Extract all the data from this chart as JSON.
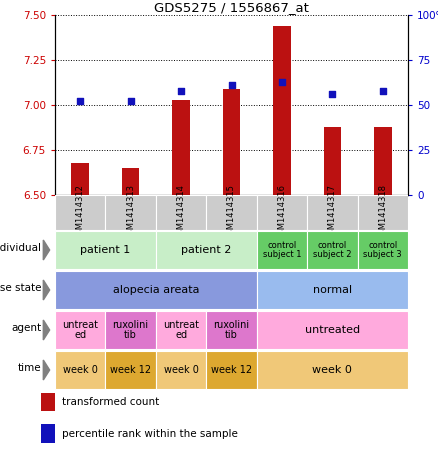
{
  "title": "GDS5275 / 1556867_at",
  "samples": [
    "GSM1414312",
    "GSM1414313",
    "GSM1414314",
    "GSM1414315",
    "GSM1414316",
    "GSM1414317",
    "GSM1414318"
  ],
  "bar_values": [
    6.68,
    6.65,
    7.03,
    7.09,
    7.44,
    6.88,
    6.88
  ],
  "dot_values": [
    52,
    52,
    58,
    61,
    63,
    56,
    58
  ],
  "ylim_left": [
    6.5,
    7.5
  ],
  "ylim_right": [
    0,
    100
  ],
  "yticks_left": [
    6.5,
    6.75,
    7.0,
    7.25,
    7.5
  ],
  "yticks_right": [
    0,
    25,
    50,
    75,
    100
  ],
  "bar_color": "#bb1111",
  "dot_color": "#1111bb",
  "bar_bottom": 6.5,
  "annotation_rows": [
    {
      "label": "individual",
      "cells": [
        {
          "text": "patient 1",
          "span": 2,
          "bg": "#c8eec8",
          "fontsize": 8
        },
        {
          "text": "patient 2",
          "span": 2,
          "bg": "#c8eec8",
          "fontsize": 8
        },
        {
          "text": "control\nsubject 1",
          "span": 1,
          "bg": "#66cc66",
          "fontsize": 6
        },
        {
          "text": "control\nsubject 2",
          "span": 1,
          "bg": "#66cc66",
          "fontsize": 6
        },
        {
          "text": "control\nsubject 3",
          "span": 1,
          "bg": "#66cc66",
          "fontsize": 6
        }
      ]
    },
    {
      "label": "disease state",
      "cells": [
        {
          "text": "alopecia areata",
          "span": 4,
          "bg": "#8899dd",
          "fontsize": 8
        },
        {
          "text": "normal",
          "span": 3,
          "bg": "#99bbee",
          "fontsize": 8
        }
      ]
    },
    {
      "label": "agent",
      "cells": [
        {
          "text": "untreat\ned",
          "span": 1,
          "bg": "#ffaadd",
          "fontsize": 7
        },
        {
          "text": "ruxolini\ntib",
          "span": 1,
          "bg": "#dd77cc",
          "fontsize": 7
        },
        {
          "text": "untreat\ned",
          "span": 1,
          "bg": "#ffaadd",
          "fontsize": 7
        },
        {
          "text": "ruxolini\ntib",
          "span": 1,
          "bg": "#dd77cc",
          "fontsize": 7
        },
        {
          "text": "untreated",
          "span": 3,
          "bg": "#ffaadd",
          "fontsize": 8
        }
      ]
    },
    {
      "label": "time",
      "cells": [
        {
          "text": "week 0",
          "span": 1,
          "bg": "#f0c878",
          "fontsize": 7
        },
        {
          "text": "week 12",
          "span": 1,
          "bg": "#dda830",
          "fontsize": 7
        },
        {
          "text": "week 0",
          "span": 1,
          "bg": "#f0c878",
          "fontsize": 7
        },
        {
          "text": "week 12",
          "span": 1,
          "bg": "#dda830",
          "fontsize": 7
        },
        {
          "text": "week 0",
          "span": 3,
          "bg": "#f0c878",
          "fontsize": 8
        }
      ]
    }
  ],
  "legend": [
    {
      "color": "#bb1111",
      "label": "transformed count"
    },
    {
      "color": "#1111bb",
      "label": "percentile rank within the sample"
    }
  ],
  "tick_color_left": "#cc0000",
  "tick_color_right": "#0000cc",
  "bg_sample_row": "#cccccc",
  "fig_width": 4.38,
  "fig_height": 4.53
}
